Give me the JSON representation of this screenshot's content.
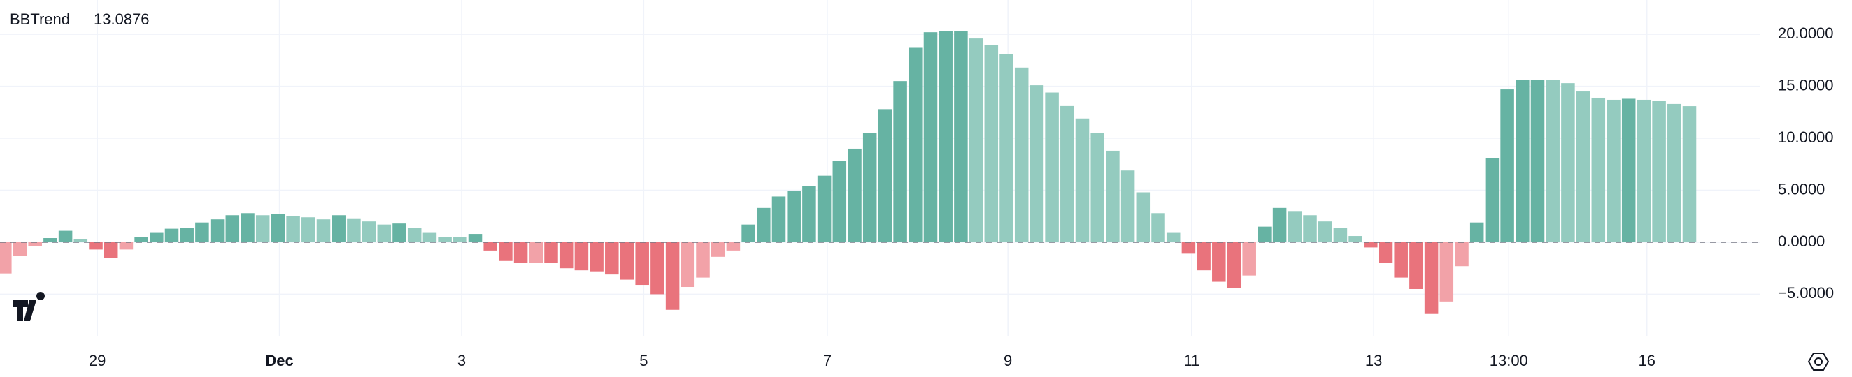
{
  "chart_data": {
    "type": "bar",
    "title": "BBTrend",
    "values": [
      -3.0,
      -1.3,
      -0.4,
      0.4,
      1.1,
      0.3,
      -0.7,
      -1.5,
      -0.7,
      0.5,
      0.9,
      1.3,
      1.4,
      1.9,
      2.2,
      2.6,
      2.8,
      2.6,
      2.7,
      2.5,
      2.4,
      2.2,
      2.6,
      2.3,
      2.0,
      1.7,
      1.8,
      1.4,
      0.9,
      0.5,
      0.5,
      0.8,
      -0.8,
      -1.8,
      -2.0,
      -2.0,
      -2.0,
      -2.5,
      -2.7,
      -2.8,
      -3.1,
      -3.6,
      -4.1,
      -5.0,
      -6.5,
      -4.3,
      -3.4,
      -1.4,
      -0.8,
      1.7,
      3.3,
      4.4,
      4.9,
      5.4,
      6.4,
      7.8,
      9.0,
      10.5,
      12.8,
      15.5,
      18.7,
      20.2,
      20.3,
      20.3,
      19.6,
      19.0,
      18.1,
      16.8,
      15.1,
      14.4,
      13.1,
      11.9,
      10.5,
      8.8,
      6.9,
      4.8,
      2.8,
      0.9,
      -1.1,
      -2.7,
      -3.8,
      -4.4,
      -3.2,
      1.5,
      3.3,
      3.0,
      2.6,
      2.0,
      1.4,
      0.6,
      -0.5,
      -2.0,
      -3.4,
      -4.5,
      -6.9,
      -5.7,
      -2.3,
      1.9,
      8.1,
      14.7,
      15.6,
      15.6,
      15.6,
      15.3,
      14.5,
      13.9,
      13.7,
      13.8,
      13.7,
      13.6,
      13.3,
      13.0876
    ],
    "colors": [
      "#f2a2a8",
      "#f2a2a8",
      "#f2a2a8",
      "#66b3a3",
      "#66b3a3",
      "#94cbbf",
      "#e9737c",
      "#e9737c",
      "#f2a2a8",
      "#66b3a3",
      "#66b3a3",
      "#66b3a3",
      "#66b3a3",
      "#66b3a3",
      "#66b3a3",
      "#66b3a3",
      "#66b3a3",
      "#94cbbf",
      "#66b3a3",
      "#94cbbf",
      "#94cbbf",
      "#94cbbf",
      "#66b3a3",
      "#94cbbf",
      "#94cbbf",
      "#94cbbf",
      "#66b3a3",
      "#94cbbf",
      "#94cbbf",
      "#94cbbf",
      "#94cbbf",
      "#66b3a3",
      "#e9737c",
      "#e9737c",
      "#e9737c",
      "#f2a2a8",
      "#e9737c",
      "#e9737c",
      "#e9737c",
      "#e9737c",
      "#e9737c",
      "#e9737c",
      "#e9737c",
      "#e9737c",
      "#e9737c",
      "#f2a2a8",
      "#f2a2a8",
      "#f2a2a8",
      "#f2a2a8",
      "#66b3a3",
      "#66b3a3",
      "#66b3a3",
      "#66b3a3",
      "#66b3a3",
      "#66b3a3",
      "#66b3a3",
      "#66b3a3",
      "#66b3a3",
      "#66b3a3",
      "#66b3a3",
      "#66b3a3",
      "#66b3a3",
      "#66b3a3",
      "#66b3a3",
      "#94cbbf",
      "#94cbbf",
      "#94cbbf",
      "#94cbbf",
      "#94cbbf",
      "#94cbbf",
      "#94cbbf",
      "#94cbbf",
      "#94cbbf",
      "#94cbbf",
      "#94cbbf",
      "#94cbbf",
      "#94cbbf",
      "#94cbbf",
      "#e9737c",
      "#e9737c",
      "#e9737c",
      "#e9737c",
      "#f2a2a8",
      "#66b3a3",
      "#66b3a3",
      "#94cbbf",
      "#94cbbf",
      "#94cbbf",
      "#94cbbf",
      "#94cbbf",
      "#e9737c",
      "#e9737c",
      "#e9737c",
      "#e9737c",
      "#e9737c",
      "#f2a2a8",
      "#f2a2a8",
      "#66b3a3",
      "#66b3a3",
      "#66b3a3",
      "#66b3a3",
      "#66b3a3",
      "#94cbbf",
      "#94cbbf",
      "#94cbbf",
      "#94cbbf",
      "#94cbbf",
      "#66b3a3",
      "#94cbbf",
      "#94cbbf",
      "#94cbbf",
      "#94cbbf"
    ],
    "value_color": "#4f9e85",
    "ylim": [
      -9.0,
      23.3
    ],
    "yticks": [
      {
        "value": -5,
        "label": "−5.0000"
      },
      {
        "value": 0,
        "label": "0.0000"
      },
      {
        "value": 5,
        "label": "5.0000"
      },
      {
        "value": 10,
        "label": "10.0000"
      },
      {
        "value": 15,
        "label": "15.0000"
      },
      {
        "value": 20,
        "label": "20.0000"
      }
    ],
    "xticks": [
      {
        "value": 6.1,
        "label": "29"
      },
      {
        "value": 18.1,
        "label": "Dec"
      },
      {
        "value": 30.1,
        "label": "3"
      },
      {
        "value": 42.1,
        "label": "5"
      },
      {
        "value": 54.2,
        "label": "7"
      },
      {
        "value": 66.1,
        "label": "9"
      },
      {
        "value": 78.2,
        "label": "11"
      },
      {
        "value": 90.2,
        "label": "13"
      },
      {
        "value": 99.1,
        "label": "13:00"
      },
      {
        "value": 108.2,
        "label": "16"
      }
    ],
    "grid": true
  }
}
